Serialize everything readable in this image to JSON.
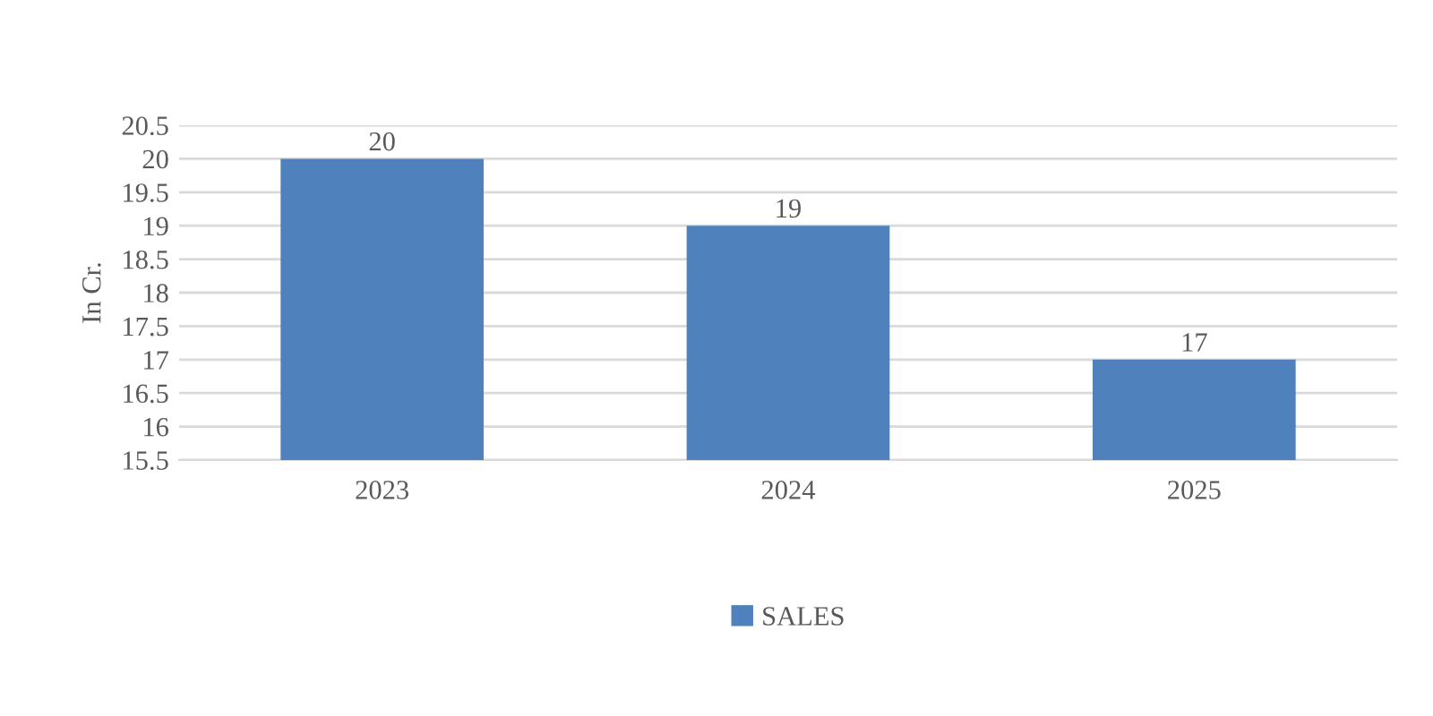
{
  "chart_data": {
    "type": "bar",
    "ylabel": "In Cr.",
    "categories": [
      "2023",
      "2024",
      "2025"
    ],
    "series": [
      {
        "name": "SALES",
        "color": "#4f81bd",
        "values": [
          20,
          19,
          17
        ]
      }
    ],
    "ylim": [
      15.5,
      20.5
    ],
    "yticks": [
      15.5,
      16,
      16.5,
      17,
      17.5,
      18,
      18.5,
      19,
      19.5,
      20,
      20.5
    ],
    "grid": "y",
    "legend": "bottom",
    "data_labels": true
  }
}
